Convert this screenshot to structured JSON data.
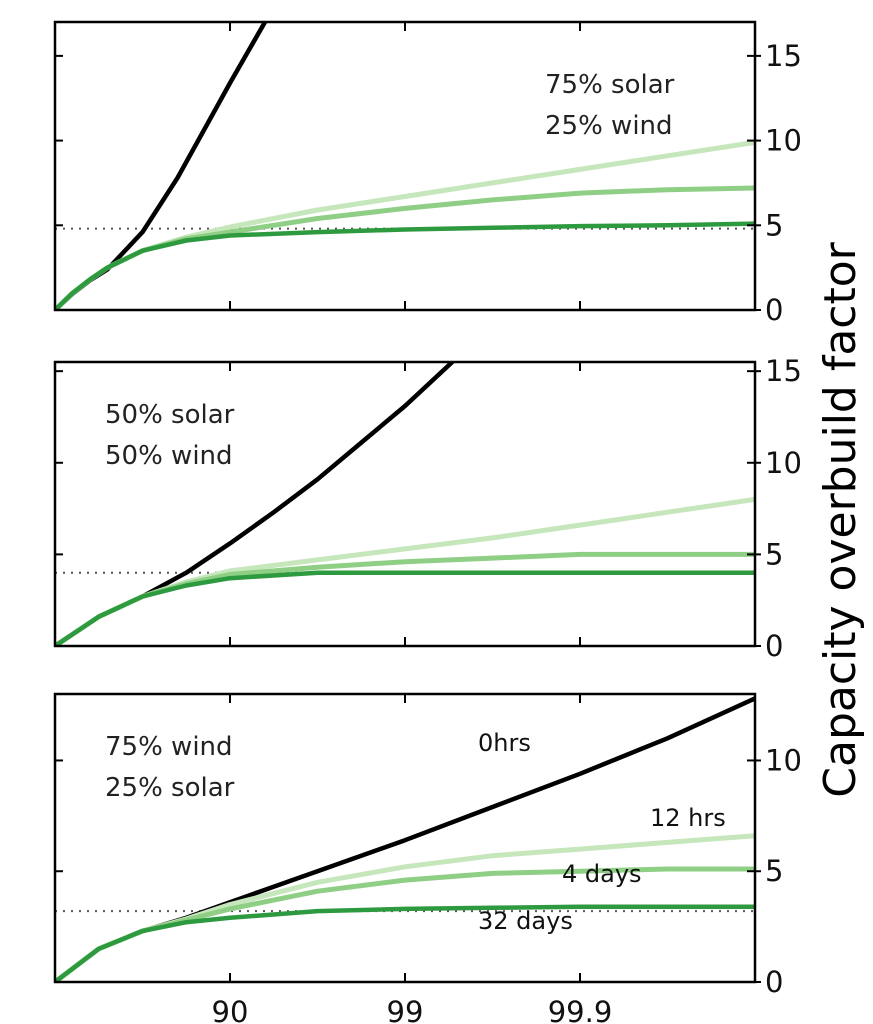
{
  "chart_data": [
    {
      "type": "line",
      "panel": "top",
      "annotation": [
        "75% solar",
        "25% wind"
      ],
      "ylim": [
        0,
        17
      ],
      "yticks": [
        0,
        5,
        10,
        15
      ],
      "reference_y": 4.8,
      "x_ticks": [],
      "series": [
        {
          "id": "0hrs",
          "color": "#000000",
          "x": [
            0,
            0.1,
            0.2,
            0.3,
            0.5,
            0.7,
            0.85,
            1.0,
            1.1,
            1.2
          ],
          "y": [
            0,
            0.95,
            1.75,
            2.4,
            4.6,
            7.8,
            10.6,
            13.4,
            15.2,
            17
          ]
        },
        {
          "id": "12hrs",
          "color": "#c6e6bc",
          "x": [
            0,
            0.1,
            0.2,
            0.3,
            0.5,
            0.75,
            1.0,
            1.5,
            2.0,
            2.5,
            3.0,
            3.5,
            4.0
          ],
          "y": [
            0,
            1.0,
            1.8,
            2.5,
            3.5,
            4.3,
            4.9,
            5.9,
            6.7,
            7.5,
            8.3,
            9.1,
            9.9
          ]
        },
        {
          "id": "4days",
          "color": "#8fcf85",
          "x": [
            0,
            0.1,
            0.2,
            0.3,
            0.5,
            0.75,
            1.0,
            1.5,
            2.0,
            2.5,
            3.0,
            3.5,
            4.0
          ],
          "y": [
            0,
            1.0,
            1.8,
            2.5,
            3.5,
            4.2,
            4.6,
            5.4,
            6.0,
            6.5,
            6.9,
            7.1,
            7.2
          ]
        },
        {
          "id": "32days",
          "color": "#2e9a3f",
          "x": [
            0,
            0.1,
            0.2,
            0.3,
            0.5,
            0.75,
            1.0,
            1.5,
            2.0,
            2.5,
            3.0,
            3.5,
            4.0
          ],
          "y": [
            0,
            1.0,
            1.8,
            2.5,
            3.5,
            4.1,
            4.4,
            4.6,
            4.75,
            4.85,
            4.95,
            5.0,
            5.1
          ]
        }
      ]
    },
    {
      "type": "line",
      "panel": "middle",
      "annotation": [
        "50% solar",
        "50% wind"
      ],
      "ylim": [
        0,
        15.5
      ],
      "yticks": [
        0,
        5,
        10,
        15
      ],
      "reference_y": 4.0,
      "x_ticks": [],
      "series": [
        {
          "id": "0hrs",
          "color": "#000000",
          "x": [
            0,
            0.25,
            0.5,
            0.75,
            1.0,
            1.25,
            1.5,
            1.75,
            2.0,
            2.27
          ],
          "y": [
            0,
            1.6,
            2.7,
            4.0,
            5.6,
            7.3,
            9.1,
            11.1,
            13.1,
            15.5
          ]
        },
        {
          "id": "12hrs",
          "color": "#c6e6bc",
          "x": [
            0,
            0.25,
            0.5,
            0.75,
            1.0,
            1.5,
            2.0,
            2.5,
            3.0,
            3.5,
            4.0
          ],
          "y": [
            0,
            1.6,
            2.7,
            3.5,
            4.1,
            4.7,
            5.3,
            5.9,
            6.6,
            7.3,
            8.0
          ]
        },
        {
          "id": "4days",
          "color": "#8fcf85",
          "x": [
            0,
            0.25,
            0.5,
            0.75,
            1.0,
            1.5,
            2.0,
            2.5,
            3.0,
            3.5,
            4.0
          ],
          "y": [
            0,
            1.6,
            2.7,
            3.4,
            3.9,
            4.3,
            4.6,
            4.8,
            5.0,
            5.0,
            5.0
          ]
        },
        {
          "id": "32days",
          "color": "#2e9a3f",
          "x": [
            0,
            0.25,
            0.5,
            0.75,
            1.0,
            1.5,
            2.0,
            2.5,
            3.0,
            3.5,
            4.0
          ],
          "y": [
            0,
            1.6,
            2.7,
            3.3,
            3.7,
            4.0,
            4.0,
            4.0,
            4.0,
            4.0,
            4.0
          ]
        }
      ]
    },
    {
      "type": "line",
      "panel": "bottom",
      "annotation": [
        "75% wind",
        "25% solar"
      ],
      "ylim": [
        0,
        13
      ],
      "yticks": [
        0,
        5,
        10
      ],
      "reference_y": 3.2,
      "x_ticks": [
        {
          "value": 1,
          "label": "90"
        },
        {
          "value": 2,
          "label": "99"
        },
        {
          "value": 3,
          "label": "99.9"
        }
      ],
      "series": [
        {
          "id": "0hrs",
          "color": "#000000",
          "label": "0hrs",
          "x": [
            0,
            0.25,
            0.5,
            0.75,
            1.0,
            1.5,
            2.0,
            2.5,
            3.0,
            3.5,
            4.0
          ],
          "y": [
            0,
            1.5,
            2.3,
            2.9,
            3.6,
            5.0,
            6.4,
            7.9,
            9.4,
            11.0,
            12.8
          ]
        },
        {
          "id": "12hrs",
          "color": "#c6e6bc",
          "label": "12 hrs",
          "x": [
            0,
            0.25,
            0.5,
            0.75,
            1.0,
            1.5,
            2.0,
            2.5,
            3.0,
            3.5,
            4.0
          ],
          "y": [
            0,
            1.5,
            2.3,
            2.85,
            3.5,
            4.5,
            5.2,
            5.7,
            6.0,
            6.3,
            6.6
          ]
        },
        {
          "id": "4days",
          "color": "#8fcf85",
          "label": "4 days",
          "x": [
            0,
            0.25,
            0.5,
            0.75,
            1.0,
            1.5,
            2.0,
            2.5,
            3.0,
            3.5,
            4.0
          ],
          "y": [
            0,
            1.5,
            2.3,
            2.8,
            3.3,
            4.1,
            4.6,
            4.9,
            5.0,
            5.1,
            5.1
          ]
        },
        {
          "id": "32days",
          "color": "#2e9a3f",
          "label": "32 days",
          "x": [
            0,
            0.25,
            0.5,
            0.75,
            1.0,
            1.5,
            2.0,
            2.5,
            3.0,
            3.5,
            4.0
          ],
          "y": [
            0,
            1.5,
            2.3,
            2.7,
            2.9,
            3.2,
            3.3,
            3.35,
            3.4,
            3.4,
            3.4
          ]
        }
      ]
    }
  ],
  "ylabel": "Capacity overbuild factor"
}
